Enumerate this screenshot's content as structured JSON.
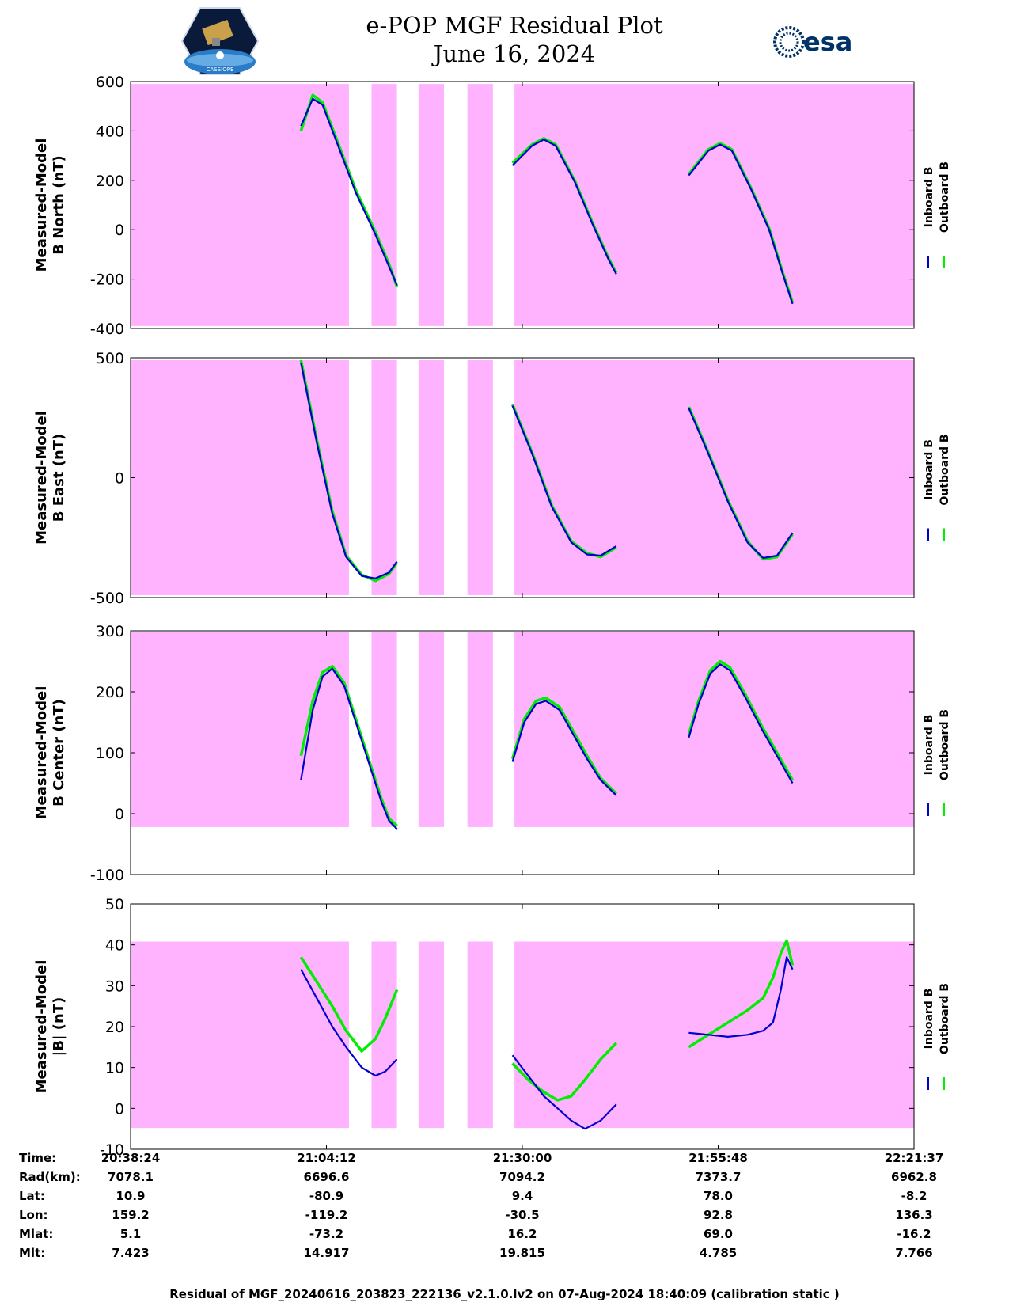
{
  "header": {
    "title_line1": "e-POP MGF Residual Plot",
    "title_line2": "June 16, 2024",
    "left_logo_text": "CASSIOPE",
    "right_logo_text": "esa"
  },
  "colors": {
    "shade": "#ffb3ff",
    "inboard": "#0000cc",
    "outboard": "#00ee00",
    "axis": "#000000"
  },
  "legend": {
    "inboard": "Inboard B",
    "outboard": "Outboard B"
  },
  "chart_data": [
    {
      "type": "line",
      "title": "B North",
      "ylabel": [
        "Measured-Model",
        "B North (nT)"
      ],
      "ylim": [
        -400,
        600
      ],
      "yticks": [
        -400,
        -200,
        0,
        200,
        400,
        600
      ],
      "shade_range": [
        -390,
        590
      ],
      "series": [
        {
          "name": "Inboard B",
          "segments": [
            [
              [
                8.7,
                420
              ],
              [
                9.3,
                530
              ],
              [
                9.8,
                505
              ],
              [
                10.5,
                360
              ],
              [
                11.5,
                150
              ],
              [
                12.5,
                -20
              ],
              [
                13.2,
                -150
              ],
              [
                13.6,
                -225
              ]
            ],
            [
              [
                19.5,
                260
              ],
              [
                20.5,
                340
              ],
              [
                21.1,
                365
              ],
              [
                21.7,
                340
              ],
              [
                22.7,
                190
              ],
              [
                23.6,
                20
              ],
              [
                24.4,
                -120
              ],
              [
                24.8,
                -180
              ]
            ],
            [
              [
                28.5,
                220
              ],
              [
                29.5,
                320
              ],
              [
                30.1,
                345
              ],
              [
                30.7,
                320
              ],
              [
                31.7,
                160
              ],
              [
                32.6,
                0
              ],
              [
                33.3,
                -180
              ],
              [
                33.8,
                -300
              ]
            ]
          ]
        },
        {
          "name": "Outboard B",
          "segments": [
            [
              [
                8.7,
                400
              ],
              [
                9.3,
                545
              ],
              [
                9.8,
                515
              ],
              [
                10.5,
                370
              ],
              [
                11.5,
                160
              ],
              [
                12.5,
                -10
              ],
              [
                13.2,
                -140
              ],
              [
                13.6,
                -230
              ]
            ],
            [
              [
                19.5,
                270
              ],
              [
                20.5,
                345
              ],
              [
                21.1,
                370
              ],
              [
                21.7,
                345
              ],
              [
                22.7,
                195
              ],
              [
                23.6,
                25
              ],
              [
                24.4,
                -115
              ],
              [
                24.8,
                -175
              ]
            ],
            [
              [
                28.5,
                225
              ],
              [
                29.5,
                325
              ],
              [
                30.1,
                350
              ],
              [
                30.7,
                325
              ],
              [
                31.7,
                165
              ],
              [
                32.6,
                5
              ],
              [
                33.3,
                -175
              ],
              [
                33.8,
                -295
              ]
            ]
          ]
        }
      ]
    },
    {
      "type": "line",
      "title": "B East",
      "ylabel": [
        "Measured-Model",
        "B East (nT)"
      ],
      "ylim": [
        -500,
        500
      ],
      "yticks": [
        -500,
        0,
        500
      ],
      "shade_range": [
        -490,
        490
      ],
      "series": [
        {
          "name": "Inboard B",
          "segments": [
            [
              [
                8.7,
                480
              ],
              [
                9.5,
                150
              ],
              [
                10.3,
                -150
              ],
              [
                11.0,
                -330
              ],
              [
                11.8,
                -410
              ],
              [
                12.5,
                -420
              ],
              [
                13.2,
                -395
              ],
              [
                13.6,
                -350
              ]
            ],
            [
              [
                19.5,
                300
              ],
              [
                20.5,
                100
              ],
              [
                21.5,
                -120
              ],
              [
                22.5,
                -270
              ],
              [
                23.3,
                -320
              ],
              [
                24.0,
                -325
              ],
              [
                24.8,
                -285
              ]
            ],
            [
              [
                28.5,
                290
              ],
              [
                29.5,
                100
              ],
              [
                30.5,
                -100
              ],
              [
                31.5,
                -270
              ],
              [
                32.3,
                -335
              ],
              [
                33.0,
                -325
              ],
              [
                33.8,
                -230
              ]
            ]
          ]
        },
        {
          "name": "Outboard B",
          "segments": [
            [
              [
                8.7,
                490
              ],
              [
                9.5,
                160
              ],
              [
                10.3,
                -140
              ],
              [
                11.0,
                -325
              ],
              [
                11.8,
                -405
              ],
              [
                12.5,
                -430
              ],
              [
                13.2,
                -400
              ],
              [
                13.6,
                -355
              ]
            ],
            [
              [
                19.5,
                305
              ],
              [
                20.5,
                105
              ],
              [
                21.5,
                -115
              ],
              [
                22.5,
                -265
              ],
              [
                23.3,
                -315
              ],
              [
                24.0,
                -330
              ],
              [
                24.8,
                -290
              ]
            ],
            [
              [
                28.5,
                295
              ],
              [
                29.5,
                105
              ],
              [
                30.5,
                -95
              ],
              [
                31.5,
                -265
              ],
              [
                32.3,
                -340
              ],
              [
                33.0,
                -330
              ],
              [
                33.8,
                -235
              ]
            ]
          ]
        }
      ]
    },
    {
      "type": "line",
      "title": "B Center",
      "ylabel": [
        "Measured-Model",
        "B Center (nT)"
      ],
      "ylim": [
        -100,
        300
      ],
      "yticks": [
        -100,
        0,
        100,
        200,
        300
      ],
      "shade_range": [
        -22,
        298
      ],
      "series": [
        {
          "name": "Inboard B",
          "segments": [
            [
              [
                8.7,
                55
              ],
              [
                9.3,
                170
              ],
              [
                9.8,
                225
              ],
              [
                10.3,
                238
              ],
              [
                10.9,
                210
              ],
              [
                11.6,
                140
              ],
              [
                12.3,
                70
              ],
              [
                12.8,
                20
              ],
              [
                13.2,
                -12
              ],
              [
                13.6,
                -25
              ]
            ],
            [
              [
                19.5,
                85
              ],
              [
                20.1,
                150
              ],
              [
                20.7,
                180
              ],
              [
                21.2,
                185
              ],
              [
                21.9,
                170
              ],
              [
                22.6,
                130
              ],
              [
                23.3,
                90
              ],
              [
                24.0,
                55
              ],
              [
                24.8,
                30
              ]
            ],
            [
              [
                28.5,
                125
              ],
              [
                29.0,
                180
              ],
              [
                29.6,
                230
              ],
              [
                30.1,
                245
              ],
              [
                30.6,
                235
              ],
              [
                31.4,
                190
              ],
              [
                32.2,
                140
              ],
              [
                33.0,
                95
              ],
              [
                33.8,
                50
              ]
            ]
          ]
        },
        {
          "name": "Outboard B",
          "segments": [
            [
              [
                8.7,
                95
              ],
              [
                9.3,
                185
              ],
              [
                9.8,
                232
              ],
              [
                10.3,
                242
              ],
              [
                10.9,
                215
              ],
              [
                11.6,
                145
              ],
              [
                12.3,
                75
              ],
              [
                12.8,
                25
              ],
              [
                13.2,
                -8
              ],
              [
                13.6,
                -20
              ]
            ],
            [
              [
                19.5,
                90
              ],
              [
                20.1,
                155
              ],
              [
                20.7,
                185
              ],
              [
                21.2,
                190
              ],
              [
                21.9,
                175
              ],
              [
                22.6,
                135
              ],
              [
                23.3,
                95
              ],
              [
                24.0,
                58
              ],
              [
                24.8,
                33
              ]
            ],
            [
              [
                28.5,
                130
              ],
              [
                29.0,
                185
              ],
              [
                29.6,
                235
              ],
              [
                30.1,
                250
              ],
              [
                30.6,
                240
              ],
              [
                31.4,
                195
              ],
              [
                32.2,
                145
              ],
              [
                33.0,
                100
              ],
              [
                33.8,
                55
              ]
            ]
          ]
        }
      ]
    },
    {
      "type": "line",
      "title": "|B|",
      "ylabel": [
        "Measured-Model",
        "|B| (nT)"
      ],
      "ylim": [
        -10,
        50
      ],
      "yticks": [
        -10,
        0,
        10,
        20,
        30,
        40,
        50
      ],
      "shade_range": [
        -4.8,
        40.8
      ],
      "series": [
        {
          "name": "Inboard B",
          "segments": [
            [
              [
                8.7,
                34
              ],
              [
                9.5,
                27
              ],
              [
                10.3,
                20
              ],
              [
                11.0,
                15
              ],
              [
                11.8,
                10
              ],
              [
                12.5,
                8
              ],
              [
                13.0,
                9
              ],
              [
                13.6,
                12
              ]
            ],
            [
              [
                19.5,
                13
              ],
              [
                20.3,
                8
              ],
              [
                21.1,
                3
              ],
              [
                21.8,
                0
              ],
              [
                22.5,
                -3
              ],
              [
                23.2,
                -5
              ],
              [
                24.0,
                -3
              ],
              [
                24.8,
                1
              ]
            ],
            [
              [
                28.5,
                18.5
              ],
              [
                29.5,
                18
              ],
              [
                30.5,
                17.5
              ],
              [
                31.5,
                18
              ],
              [
                32.3,
                19
              ],
              [
                32.8,
                21
              ],
              [
                33.2,
                29
              ],
              [
                33.5,
                37
              ],
              [
                33.8,
                34
              ]
            ]
          ]
        },
        {
          "name": "Outboard B",
          "segments": [
            [
              [
                8.7,
                37
              ],
              [
                9.5,
                31
              ],
              [
                10.3,
                25
              ],
              [
                11.0,
                19
              ],
              [
                11.8,
                14
              ],
              [
                12.5,
                17
              ],
              [
                13.0,
                22
              ],
              [
                13.6,
                29
              ]
            ],
            [
              [
                19.5,
                11
              ],
              [
                20.3,
                7
              ],
              [
                21.1,
                4
              ],
              [
                21.8,
                2
              ],
              [
                22.5,
                3
              ],
              [
                23.2,
                7
              ],
              [
                24.0,
                12
              ],
              [
                24.8,
                16
              ]
            ],
            [
              [
                28.5,
                15
              ],
              [
                29.5,
                18
              ],
              [
                30.5,
                21
              ],
              [
                31.5,
                24
              ],
              [
                32.3,
                27
              ],
              [
                32.8,
                32
              ],
              [
                33.2,
                38
              ],
              [
                33.5,
                41
              ],
              [
                33.8,
                35
              ]
            ]
          ]
        }
      ]
    }
  ],
  "x_axis": {
    "ticks": [
      0,
      10,
      20,
      30,
      40
    ],
    "gaps": [
      [
        11.15,
        12.3
      ],
      [
        13.6,
        14.7
      ],
      [
        16.0,
        17.2
      ],
      [
        18.5,
        19.6
      ]
    ],
    "separator_x": [
      19.1,
      19.25
    ],
    "xlim": [
      0,
      40
    ]
  },
  "footer": {
    "labels": [
      "Time:",
      "Rad(km):",
      "Lat:",
      "Lon:",
      "Mlat:",
      "Mlt:"
    ],
    "columns": [
      [
        "20:38:24",
        "7078.1",
        "10.9",
        "159.2",
        "5.1",
        "7.423"
      ],
      [
        "21:04:12",
        "6696.6",
        "-80.9",
        "-119.2",
        "-73.2",
        "14.917"
      ],
      [
        "21:30:00",
        "7094.2",
        "9.4",
        "-30.5",
        "16.2",
        "19.815"
      ],
      [
        "21:55:48",
        "7373.7",
        "78.0",
        "92.8",
        "69.0",
        "4.785"
      ],
      [
        "22:21:37",
        "6962.8",
        "-8.2",
        "136.3",
        "-16.2",
        "7.766"
      ]
    ]
  },
  "caption": "Residual of MGF_20240616_203823_222136_v2.1.0.lv2 on 07-Aug-2024 18:40:09 (calibration static )"
}
